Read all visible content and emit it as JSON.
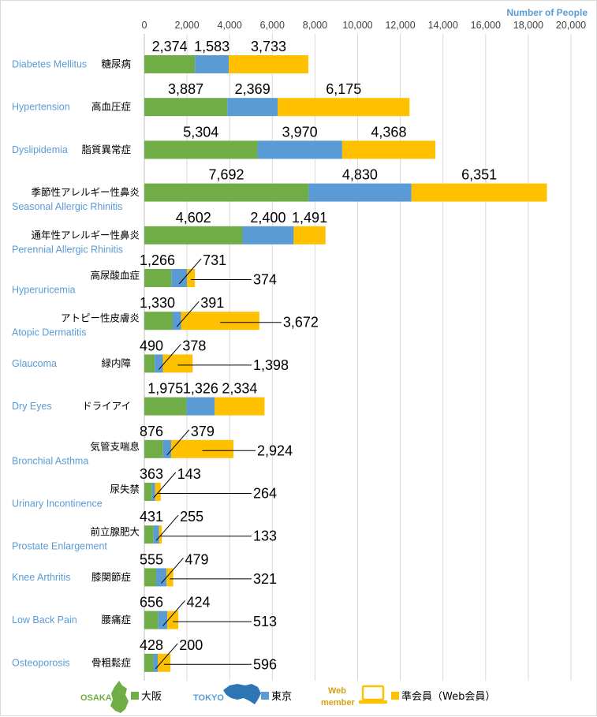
{
  "chart_data": {
    "type": "bar",
    "orientation": "horizontal",
    "stacked": true,
    "unit_label": "Number of People",
    "xlim": [
      0,
      20000
    ],
    "ticks": [
      "0",
      "2,000",
      "4,000",
      "6,000",
      "8,000",
      "10,000",
      "12,000",
      "14,000",
      "16,000",
      "18,000",
      "20,000"
    ],
    "categories": [
      {
        "en": "Diabetes Mellitus",
        "jp": "糖尿病"
      },
      {
        "en": "Hypertension",
        "jp": "高血圧症"
      },
      {
        "en": "Dyslipidemia",
        "jp": "脂質異常症"
      },
      {
        "en": "Seasonal Allergic Rhinitis",
        "jp": "季節性アレルギー性鼻炎"
      },
      {
        "en": "Perennial Allergic Rhinitis",
        "jp": "通年性アレルギー性鼻炎"
      },
      {
        "en": "Hyperuricemia",
        "jp": "高尿酸血症"
      },
      {
        "en": "Atopic Dermatitis",
        "jp": "アトピー性皮膚炎"
      },
      {
        "en": "Glaucoma",
        "jp": "緑内障"
      },
      {
        "en": "Dry Eyes",
        "jp": "ドライアイ"
      },
      {
        "en": "Bronchial Asthma",
        "jp": "気管支喘息"
      },
      {
        "en": "Urinary Incontinence",
        "jp": "尿失禁"
      },
      {
        "en": "Prostate Enlargement",
        "jp": "前立腺肥大"
      },
      {
        "en": "Knee Arthritis",
        "jp": "膝関節症"
      },
      {
        "en": "Low Back Pain",
        "jp": "腰痛症"
      },
      {
        "en": "Osteoporosis",
        "jp": "骨粗鬆症"
      }
    ],
    "series": [
      {
        "name": "大阪",
        "badge": "OSAKA",
        "color": "#70ad47",
        "values": [
          2374,
          3887,
          5304,
          7692,
          4602,
          1266,
          1330,
          490,
          1975,
          876,
          363,
          431,
          555,
          656,
          428
        ]
      },
      {
        "name": "東京",
        "badge": "TOKYO",
        "color": "#5b9bd5",
        "values": [
          1583,
          2369,
          3970,
          4830,
          2400,
          731,
          391,
          378,
          1326,
          379,
          143,
          255,
          479,
          424,
          200
        ]
      },
      {
        "name": "準会員（Web会員）",
        "badge": "Web member",
        "color": "#ffc000",
        "values": [
          3733,
          6175,
          4368,
          6351,
          1491,
          374,
          3672,
          1398,
          2334,
          2924,
          264,
          133,
          321,
          513,
          596
        ]
      }
    ],
    "legend_position": "bottom",
    "grid": true
  },
  "legend": {
    "osaka_badge": "OSAKA",
    "tokyo_badge": "TOKYO",
    "web_badge_1": "Web",
    "web_badge_2": "member",
    "osaka_label": "大阪",
    "tokyo_label": "東京",
    "web_label": "準会員（Web会員）"
  }
}
